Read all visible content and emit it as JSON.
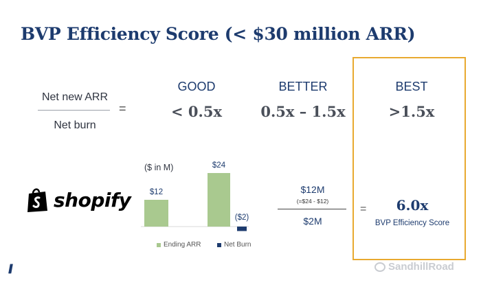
{
  "title": "BVP Efficiency Score (< $30 million ARR)",
  "formula": {
    "numerator": "Net new ARR",
    "denominator": "Net burn",
    "equals": "="
  },
  "tiers": [
    {
      "label": "GOOD",
      "value": "< 0.5x"
    },
    {
      "label": "BETTER",
      "value": "0.5x – 1.5x"
    },
    {
      "label": "BEST",
      "value": ">1.5x"
    }
  ],
  "company": {
    "logo_text": "shopify",
    "logo_icon": "shopping-bag-icon"
  },
  "colors": {
    "ending_arr": "#a9c98f",
    "net_burn": "#1d3b6e",
    "best_highlight": "#e8a92f"
  },
  "calculation": {
    "numerator": "$12M",
    "numerator_note": "(=$24 - $12)",
    "denominator": "$2M",
    "equals": "="
  },
  "result": {
    "value": "6.0x",
    "label": "BVP Efficiency Score"
  },
  "watermark": "SandhillRoad",
  "chart_data": {
    "type": "bar",
    "unit_note": "($ in M)",
    "series": [
      {
        "name": "Ending ARR",
        "values": [
          12,
          24
        ]
      },
      {
        "name": "Net Burn",
        "values": [
          -2
        ]
      }
    ],
    "bars": [
      {
        "series": "Ending ARR",
        "value": 12,
        "label": "$12"
      },
      {
        "series": "Ending ARR",
        "value": 24,
        "label": "$24"
      },
      {
        "series": "Net Burn",
        "value": -2,
        "label": "($2)"
      }
    ],
    "legend": [
      "Ending ARR",
      "Net Burn"
    ],
    "legend_position": "bottom",
    "grid": false
  }
}
